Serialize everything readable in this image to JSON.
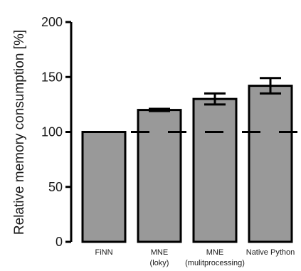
{
  "chart_data": {
    "type": "bar",
    "title": "",
    "xlabel": "",
    "ylabel": "Relative memory consumption [%]",
    "ylim": [
      0,
      200
    ],
    "yticks": [
      0,
      50,
      100,
      150,
      200
    ],
    "grid": false,
    "categories": [
      {
        "lines": [
          "FiNN"
        ]
      },
      {
        "lines": [
          "MNE",
          "(loky)"
        ]
      },
      {
        "lines": [
          "MNE",
          "(mulitprocessing)"
        ]
      },
      {
        "lines": [
          "Native Python"
        ]
      }
    ],
    "values": [
      100,
      120,
      130,
      142
    ],
    "error": [
      0,
      1,
      5,
      7
    ],
    "reference_line": 100,
    "colors": {
      "bar": "#999999",
      "outline": "#000000"
    }
  }
}
